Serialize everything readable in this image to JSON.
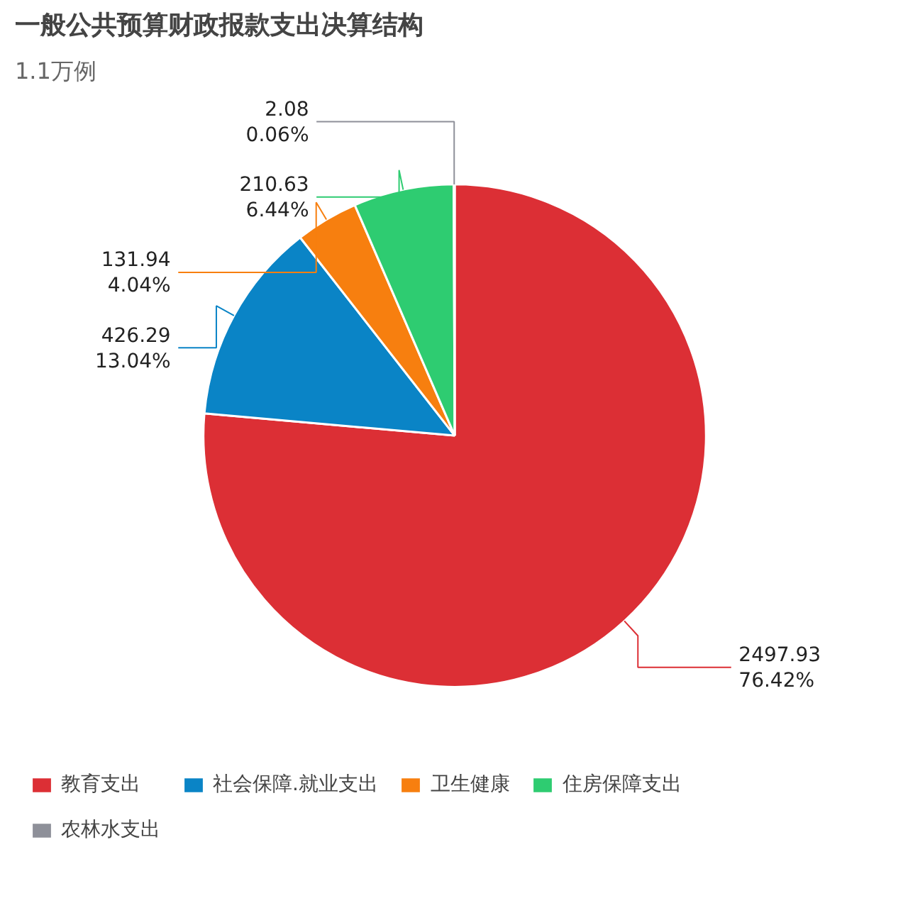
{
  "chart_data": {
    "type": "pie",
    "title": "一般公共预算财政报款支出决算结构",
    "subtitle": "1.1万例",
    "categories": [
      "教育支出",
      "社会保障.就业支出",
      "卫生健康",
      "住房保障支出",
      "农林水支出"
    ],
    "values": [
      2497.93,
      426.29,
      131.94,
      210.63,
      2.08
    ],
    "colors": [
      "#dc2f35",
      "#0a84c6",
      "#f77f0f",
      "#2ecc71",
      "#8e9099"
    ],
    "value_labels": [
      "2497.93\n76.42%",
      "426.29\n13.04%",
      "131.94\n4.04%",
      "210.63\n6.44%",
      "2.08\n0.06%"
    ],
    "legend": "bottom"
  }
}
